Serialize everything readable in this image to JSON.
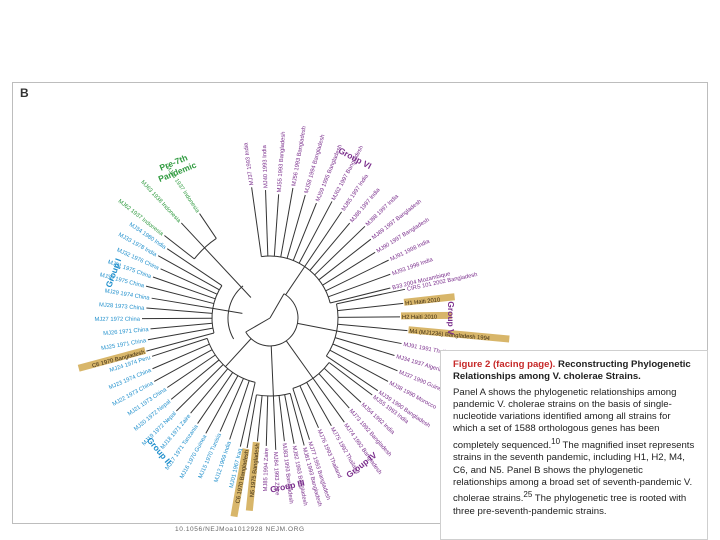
{
  "panel_label": "B",
  "doi_text": "10.1056/NEJMoa1012928   NEJM.ORG",
  "groups": {
    "pre7": "Pre-7th",
    "pre7_line2": "Pandemic",
    "g1": "Group I",
    "g2": "Group II",
    "g3": "Group III",
    "g4": "Group IV",
    "g5": "Group V",
    "g6": "Group VI"
  },
  "colors": {
    "pre7": "#2e9a3e",
    "g1": "#1f8fcc",
    "g2": "#1f8fcc",
    "g3": "#7a2e8c",
    "g4": "#7a2e8c",
    "g5": "#7a2e8c",
    "g6": "#7a2e8c",
    "highlight": "#d8b66a",
    "branch": "#333333"
  },
  "leaves": {
    "g6": [
      "MJ37 1993 India",
      "MJ40 1993 India",
      "MJ55 1993 Bangladesh",
      "MJ56 1993 Bangladesh",
      "MJ58 1994 Bangladesh",
      "MJ59 1995 Bangladesh",
      "MJ62 1997 Bangladesh",
      "MJ85 1997 India",
      "MJ86 1997 India",
      "MJ88 1997 India",
      "MJ89 1997 Bangladesh",
      "MJ90 1997 Bangladesh",
      "MJ91 1998 India",
      "MJ93 1998 India",
      "B33 2004 Mozambique"
    ],
    "g5": [
      "CIRS 101 2002 Bangladesh",
      "H1 Haiti 2010",
      "H2 Haiti 2010",
      "M4 (MJ1236) Bangladesh 1994",
      "MJ91 1991 Thailand",
      "MJ34 1937 Algeria",
      "MJ37 1990 Guinea",
      "MJ38 1990 Morocco",
      "MJ39 1990 Bangladesh"
    ],
    "g4": [
      "MJ55 1993 India",
      "MJ54 1992 India",
      "MJ73 1992 Bangladesh",
      "MJ74 1992 Bangladesh",
      "MJ75 1992 Thailand",
      "MJ76 1993 Thailand",
      "MJ77 1993 Bangladesh"
    ],
    "g3": [
      "MJ81 1993 Bangladesh",
      "MJ82 1993 Bangladesh",
      "MJ83 1993 Bangladesh",
      "MJ84 1993 Zaire",
      "MJ85 1994 Zaire",
      "N5 1975 Bangladesh",
      "C6 1970 Bangladesh"
    ],
    "g2": [
      "MJ01 1967 Iraq",
      "MJ12 1969 India",
      "MJ15 1970 Tunisia",
      "MJ16 1970 Guinea",
      "MJ17 1971 Tanzania",
      "MJ18 1971 Zaire",
      "MJ19 1972 Nepal",
      "MJ20 1972 Nepal",
      "MJ21 1973 China",
      "MJ22 1973 China",
      "MJ23 1974 China",
      "MJ24 1974 Peru"
    ],
    "g1": [
      "C6 1970 Bangladesh",
      "MJ25 1971 China",
      "MJ26 1971 China",
      "MJ27 1972 China",
      "MJ28 1973 China",
      "MJ29 1974 China",
      "MJ30 1975 China",
      "MJ31 1975 China",
      "MJ32 1976 China",
      "MJ33 1978 India",
      "MJ34 1980 India"
    ],
    "pre7": [
      "MJ62 1937 Indonesia",
      "MJ63 1938 Indonesia",
      "MJ64 1937 Indonesia"
    ]
  },
  "highlighted_leaves": [
    "H1 Haiti 2010",
    "H2 Haiti 2010",
    "M4 (MJ1236) Bangladesh 1994",
    "C6 1970 Bangladesh",
    "N5 1975 Bangladesh"
  ],
  "caption": {
    "heading_a": "Figure 2 (facing page).",
    "heading_b": "Reconstructing Phylogenetic Relationships among V. cholerae Strains.",
    "paragraph_1": "Panel A shows the phylogenetic relationships among pandemic V. cholerae strains on the basis of single-nucleotide variations identified among all strains for which a set of 1588 orthologous genes has been completely sequenced.",
    "ref_1": "10",
    "paragraph_2": "The magnified inset represents strains in the seventh pandemic, including H1, H2, M4, C6, and N5. Panel B shows the phylogenetic relationships among a broad set of seventh-pandemic V. cholerae strains.",
    "ref_2": "25",
    "paragraph_3": "The phylogenetic tree is rooted with three pre-seventh-pandemic strains."
  }
}
